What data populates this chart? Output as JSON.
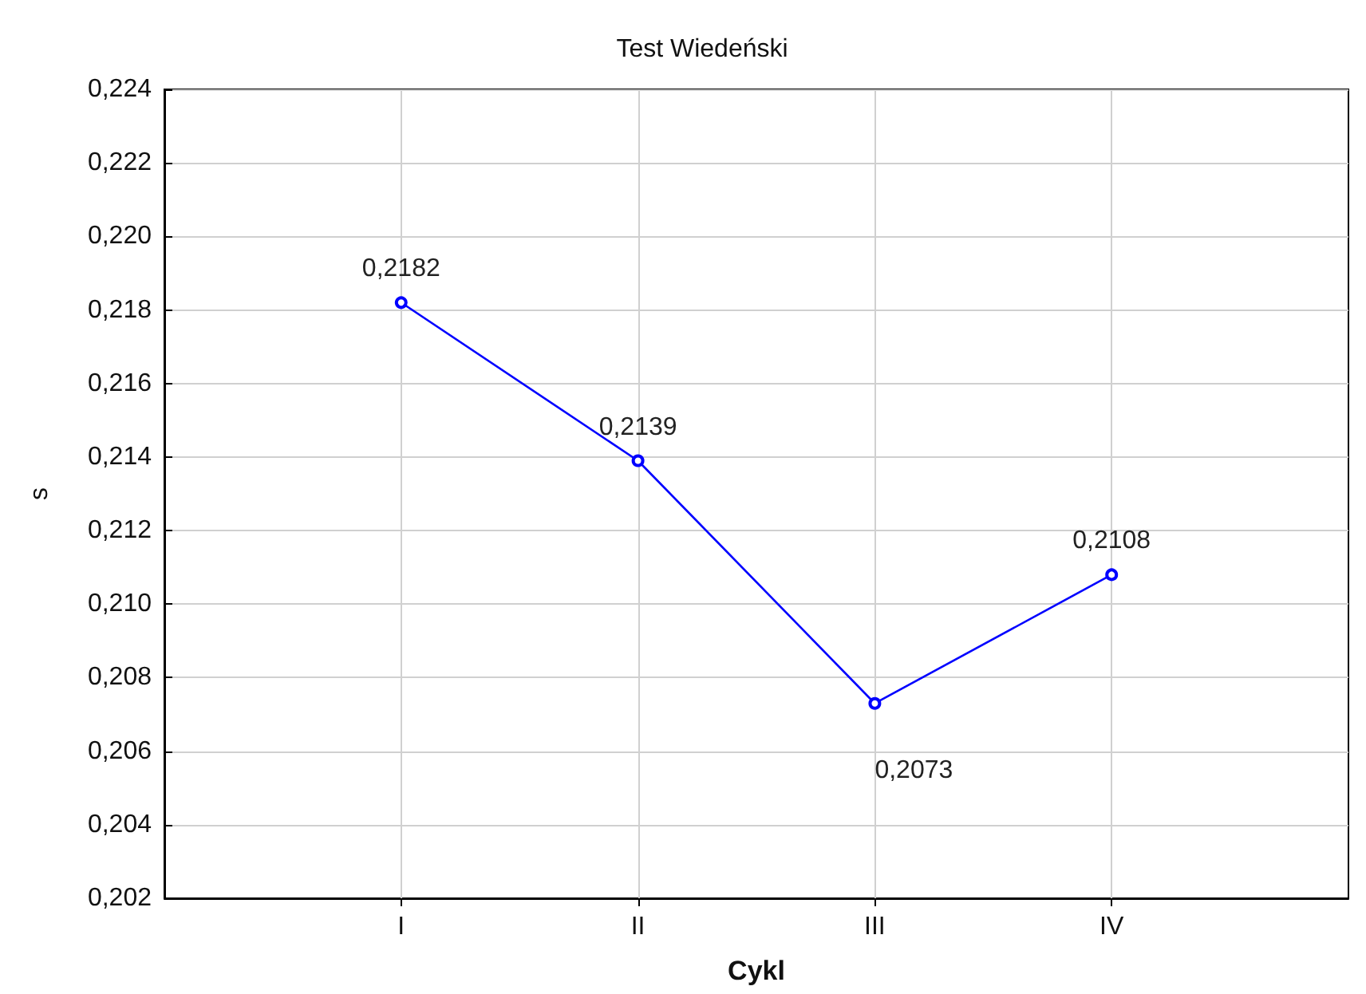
{
  "chart_data": {
    "type": "line",
    "title": "Test Wiedeński",
    "xlabel": "Cykl",
    "ylabel": "s",
    "categories": [
      "I",
      "II",
      "III",
      "IV"
    ],
    "series": [
      {
        "color": "#0000ff",
        "values": [
          0.2182,
          0.2139,
          0.2073,
          0.2108
        ],
        "value_labels": [
          "0,2182",
          "0,2139",
          "0,2073",
          "0,2108"
        ]
      }
    ],
    "ylim": [
      0.202,
      0.224
    ],
    "yticks": [
      {
        "value": 0.202,
        "label": "0,202"
      },
      {
        "value": 0.204,
        "label": "0,204"
      },
      {
        "value": 0.206,
        "label": "0,206"
      },
      {
        "value": 0.208,
        "label": "0,208"
      },
      {
        "value": 0.21,
        "label": "0,210"
      },
      {
        "value": 0.212,
        "label": "0,212"
      },
      {
        "value": 0.214,
        "label": "0,214"
      },
      {
        "value": 0.216,
        "label": "0,216"
      },
      {
        "value": 0.218,
        "label": "0,218"
      },
      {
        "value": 0.22,
        "label": "0,220"
      },
      {
        "value": 0.222,
        "label": "0,222"
      },
      {
        "value": 0.224,
        "label": "0,224"
      }
    ],
    "grid": true,
    "marker": "circle",
    "line_style": "solid"
  }
}
